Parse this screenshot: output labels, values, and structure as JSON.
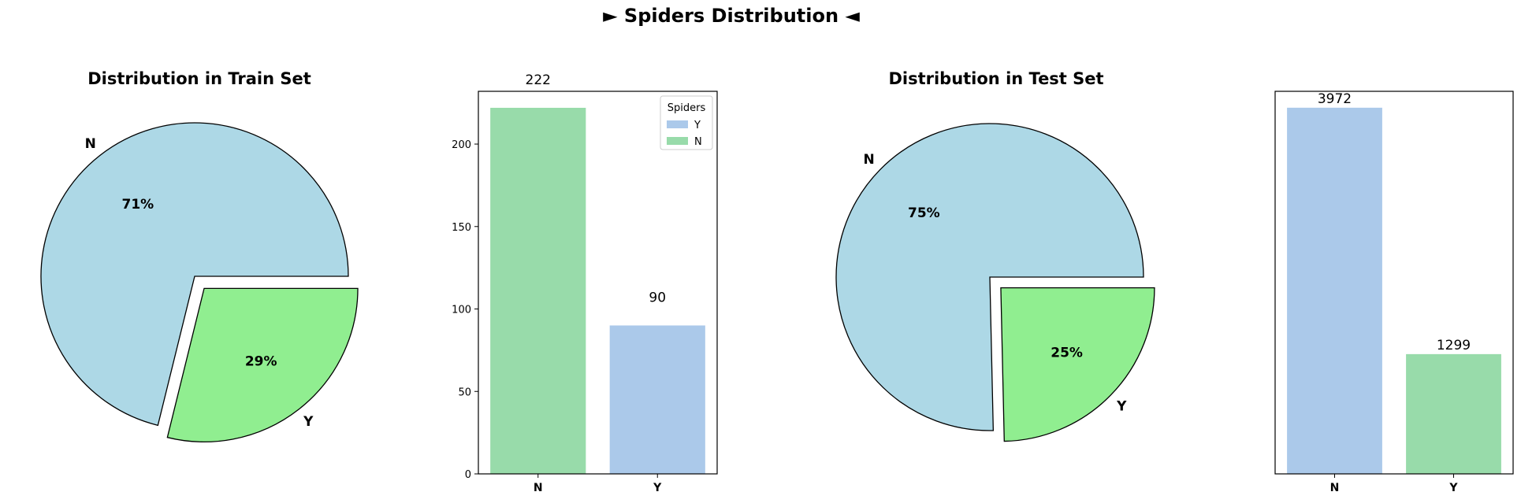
{
  "figure_title": "► Spiders Distribution ◄",
  "colors": {
    "pie_n": "#add8e6",
    "pie_y": "#90ee90",
    "bar_blue": "#abc9ea",
    "bar_green": "#98dbaa"
  },
  "chart_data": [
    {
      "type": "pie",
      "title": "Distribution in Train Set",
      "labels": [
        "N",
        "Y"
      ],
      "values": [
        222,
        90
      ],
      "percent_labels": [
        "71%",
        "29%"
      ],
      "explode": [
        0,
        0.1
      ]
    },
    {
      "type": "bar",
      "categories": [
        "N",
        "Y"
      ],
      "values": [
        222,
        90
      ],
      "value_labels": [
        "222",
        "90"
      ],
      "bar_colors": [
        "bar_green",
        "bar_blue"
      ],
      "ylim": [
        0,
        232
      ],
      "yticks": [
        0,
        50,
        100,
        150,
        200
      ],
      "yticks_visible": true,
      "legend": {
        "title": "Spiders",
        "entries": [
          "Y",
          "N"
        ],
        "entry_colors": [
          "bar_blue",
          "bar_green"
        ],
        "placement": "upper right"
      }
    },
    {
      "type": "pie",
      "title": "Distribution in Test Set",
      "labels": [
        "N",
        "Y"
      ],
      "values": [
        3972,
        1299
      ],
      "percent_labels": [
        "75%",
        "25%"
      ],
      "explode": [
        0,
        0.1
      ]
    },
    {
      "type": "bar",
      "categories": [
        "N",
        "Y"
      ],
      "values": [
        3972,
        1299
      ],
      "value_labels": [
        "3972",
        "1299"
      ],
      "bar_colors": [
        "bar_blue",
        "bar_green"
      ],
      "ylim": [
        0,
        4150
      ],
      "yticks": [],
      "yticks_visible": false,
      "legend": null
    }
  ]
}
